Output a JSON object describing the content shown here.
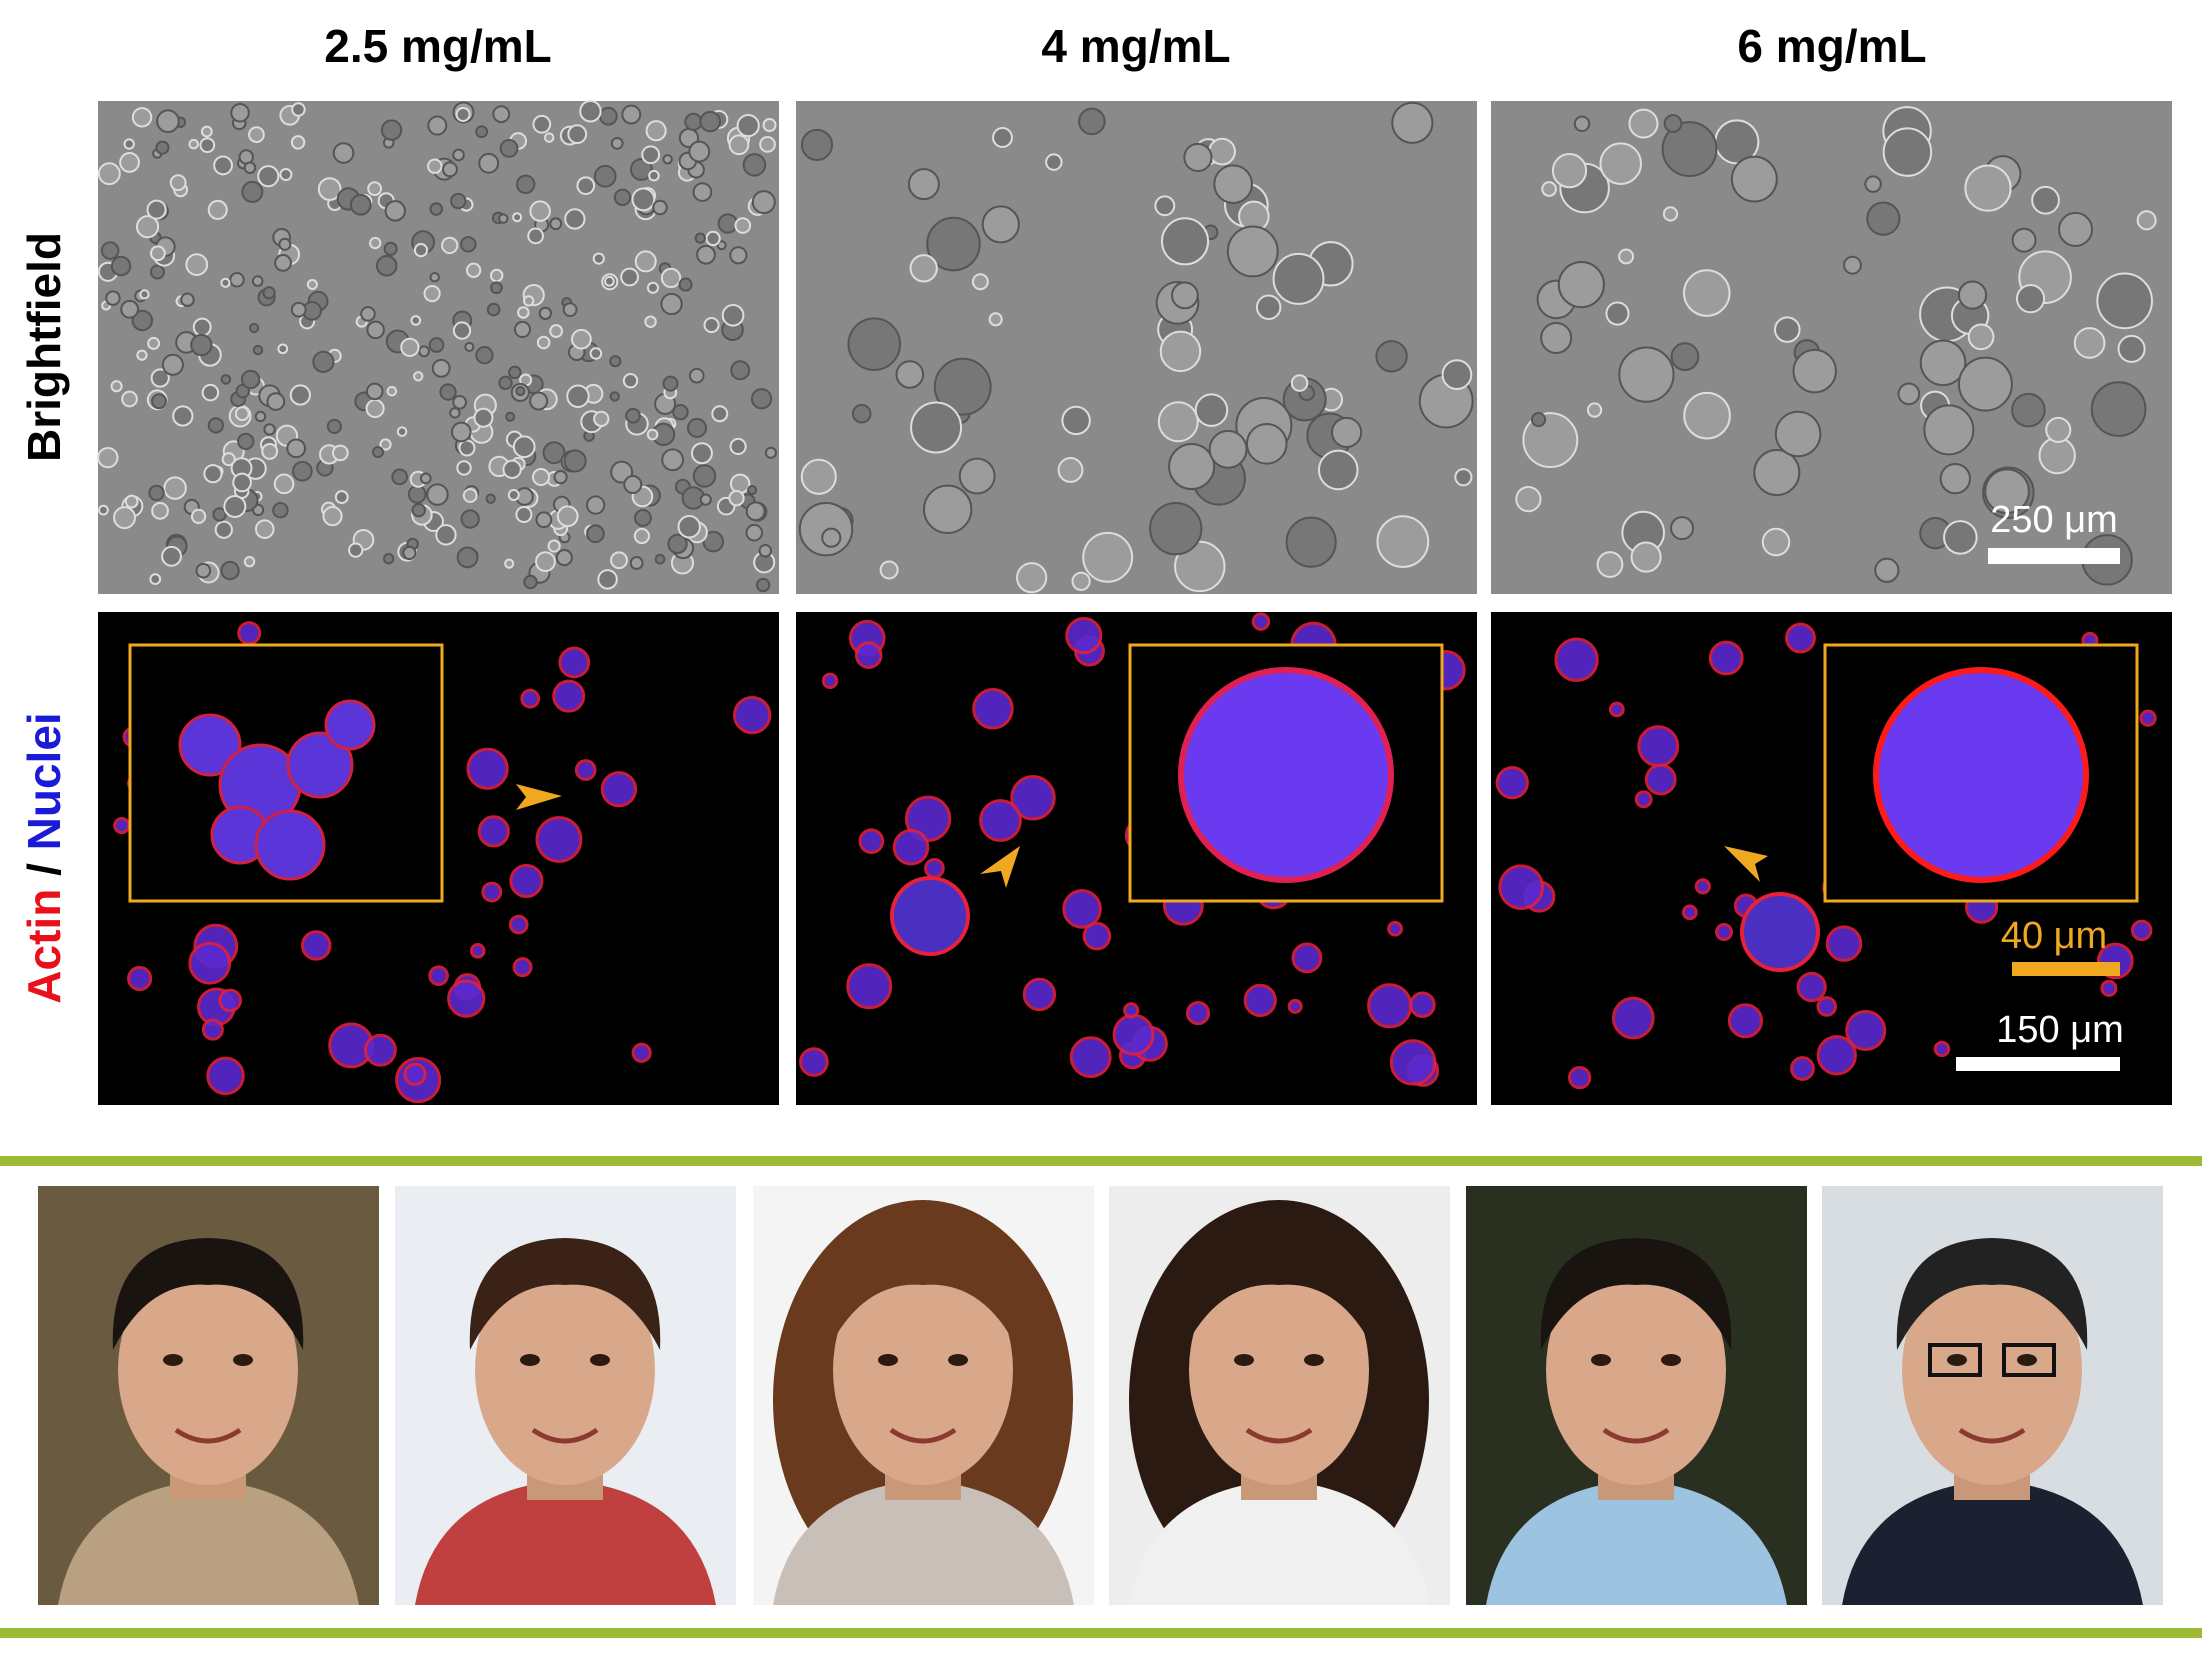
{
  "column_headers": [
    "2.5 mg/mL",
    "4 mg/mL",
    "6 mg/mL"
  ],
  "row_labels": {
    "brightfield": "Brightfield",
    "fluorescence": {
      "actin": "Actin",
      "separator": "/",
      "nuclei": "Nuclei"
    }
  },
  "scale_bars": {
    "brightfield": "250 μm",
    "inset": "40 μm",
    "fluorescence": "150 μm"
  }
}
